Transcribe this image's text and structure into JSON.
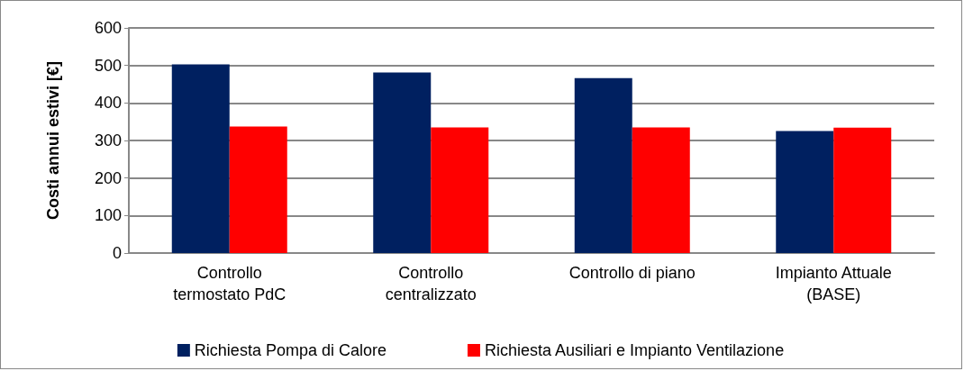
{
  "chart_data": {
    "type": "bar",
    "ylabel": "Costi annui estivi [€]",
    "categories": [
      "Controllo\ntermostato PdC",
      "Controllo\ncentralizzato",
      "Controllo di piano",
      "Impianto Attuale\n(BASE)"
    ],
    "series": [
      {
        "name": "Richiesta Pompa di Calore",
        "color": "#002060",
        "values": [
          503,
          481,
          466,
          325
        ]
      },
      {
        "name": "Richiesta Ausiliari e Impianto Ventilazione",
        "color": "#ff0000",
        "values": [
          337,
          335,
          335,
          334
        ]
      }
    ],
    "ylim": [
      0,
      600
    ],
    "yticks": [
      0,
      100,
      200,
      300,
      400,
      500,
      600
    ],
    "grid": "y",
    "legend": "bottom"
  }
}
